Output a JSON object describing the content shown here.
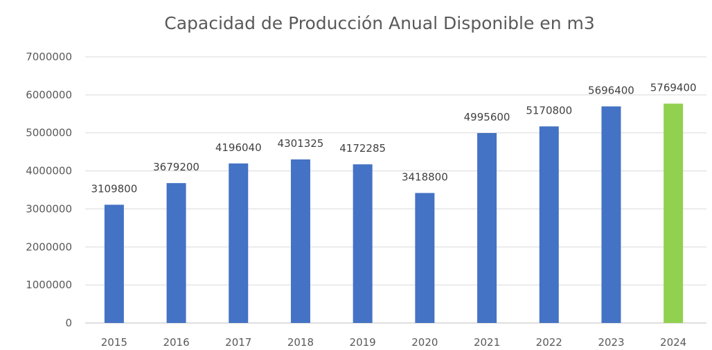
{
  "chart_data": {
    "type": "bar",
    "title": "Capacidad de Producción Anual Disponible en m3",
    "xlabel": "",
    "ylabel": "",
    "categories": [
      "2015",
      "2016",
      "2017",
      "2018",
      "2019",
      "2020",
      "2021",
      "2022",
      "2023",
      "2024"
    ],
    "values": [
      3109800,
      3679200,
      4196040,
      4301325,
      4172285,
      3418800,
      4995600,
      5170800,
      5696400,
      5769400
    ],
    "data_labels": [
      "3109800",
      "3679200",
      "4196040",
      "4301325",
      "4172285",
      "3418800",
      "4995600",
      "5170800",
      "5696400",
      "5769400"
    ],
    "ylim": [
      0,
      7000000
    ],
    "yticks": [
      0,
      1000000,
      2000000,
      3000000,
      4000000,
      5000000,
      6000000,
      7000000
    ],
    "ytick_labels": [
      "0",
      "1000000",
      "2000000",
      "3000000",
      "4000000",
      "5000000",
      "6000000",
      "7000000"
    ],
    "grid": true,
    "legend": "none",
    "colors": {
      "bar": "#4472c4",
      "highlight": "#92d050",
      "grid": "#d9d9d9",
      "text": "#595959"
    },
    "highlight_category": "2024"
  }
}
